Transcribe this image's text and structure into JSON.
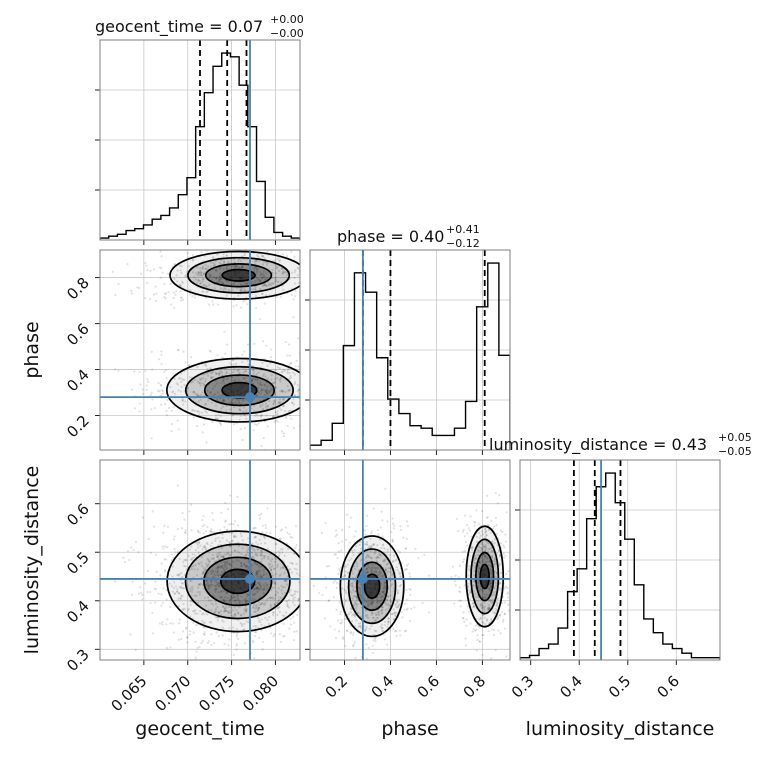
{
  "chart_data": {
    "type": "corner",
    "parameters": [
      {
        "key": "geocent_time",
        "label": "geocent_time",
        "title": "geocent_time = 0.07",
        "title_upper": "+0.00",
        "title_lower": "−0.00",
        "range": [
          0.06,
          0.0828
        ],
        "ticks": [
          "0.065",
          "0.070",
          "0.075",
          "0.080"
        ],
        "tick_values": [
          0.065,
          0.07,
          0.075,
          0.08
        ],
        "truth": 0.0771,
        "quantiles": [
          0.0714,
          0.0745,
          0.0767
        ],
        "hist_counts": [
          1,
          2,
          3,
          5,
          6,
          8,
          11,
          13,
          17,
          24,
          33,
          60,
          78,
          92,
          99,
          97,
          82,
          60,
          31,
          12,
          4,
          2,
          1
        ]
      },
      {
        "key": "phase",
        "label": "phase",
        "title": "phase = 0.40",
        "title_upper": "+0.41",
        "title_lower": "−0.12",
        "range": [
          0.05,
          0.92
        ],
        "ticks": [
          "0.2",
          "0.4",
          "0.6",
          "0.8"
        ],
        "tick_values": [
          0.2,
          0.4,
          0.6,
          0.8
        ],
        "truth": 0.28,
        "quantiles": [
          0.28,
          0.4,
          0.81
        ],
        "hist_counts": [
          2,
          4,
          11,
          43,
          73,
          65,
          38,
          21,
          15,
          10,
          9,
          6,
          6,
          9,
          20,
          59,
          77,
          39
        ]
      },
      {
        "key": "luminosity_distance",
        "label": "luminosity_distance",
        "title": "luminosity_distance = 0.43",
        "title_upper": "+0.05",
        "title_lower": "−0.05",
        "range": [
          0.278,
          0.69
        ],
        "ticks": [
          "0.3",
          "0.4",
          "0.5",
          "0.6"
        ],
        "tick_values": [
          0.3,
          0.4,
          0.5,
          0.6
        ],
        "truth": 0.445,
        "quantiles": [
          0.389,
          0.432,
          0.485
        ],
        "hist_counts": [
          1,
          2,
          5,
          7,
          14,
          30,
          40,
          62,
          76,
          82,
          69,
          53,
          33,
          18,
          12,
          7,
          5,
          3,
          1,
          1,
          1
        ]
      }
    ],
    "pair_modes": {
      "phase_vs_geocent_time": [
        {
          "x": 0.0758,
          "y": 0.81,
          "sx": 0.0034,
          "sy": 0.045,
          "weight": 0.45
        },
        {
          "x": 0.0759,
          "y": 0.31,
          "sx": 0.0036,
          "sy": 0.06,
          "weight": 0.55
        }
      ],
      "luminosity_distance_vs_geocent_time": [
        {
          "x": 0.0757,
          "y": 0.44,
          "sx": 0.0035,
          "sy": 0.045,
          "weight": 1.0
        }
      ],
      "luminosity_distance_vs_phase": [
        {
          "x": 0.32,
          "y": 0.43,
          "sx": 0.06,
          "sy": 0.045,
          "weight": 0.55
        },
        {
          "x": 0.81,
          "y": 0.45,
          "sx": 0.035,
          "sy": 0.045,
          "weight": 0.45
        }
      ]
    },
    "truth_color": "#4682b4",
    "grid": true,
    "legend": "none"
  }
}
